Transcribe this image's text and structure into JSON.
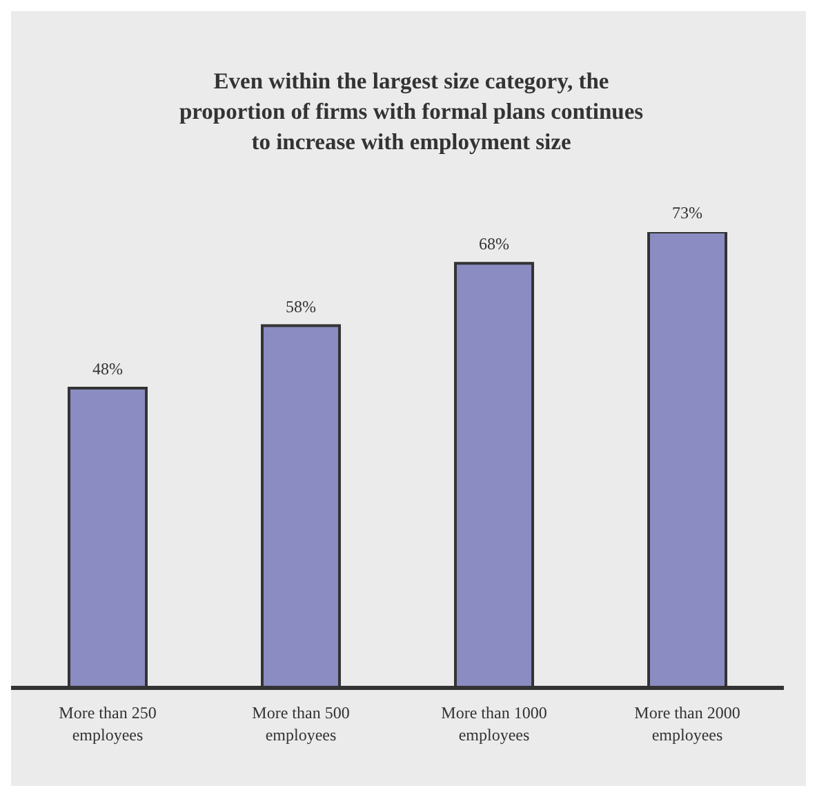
{
  "chart_data": {
    "type": "bar",
    "title": "Even within the largest size category, the proportion of firms with formal plans continues to increase with employment size",
    "categories": [
      "More than 250 employees",
      "More than 500 employees",
      "More than 1000 employees",
      "More than 2000 employees"
    ],
    "values": [
      48,
      58,
      68,
      73
    ],
    "value_labels": [
      "48%",
      "58%",
      "68%",
      "73%"
    ],
    "color": "#8b8cc2",
    "grid": false,
    "legend": false
  }
}
